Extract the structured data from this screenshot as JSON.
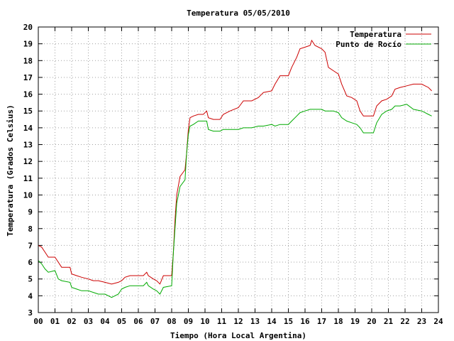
{
  "chart_data": {
    "type": "line",
    "title": "Temperatura 05/05/2010",
    "xlabel": "Tiempo (Hora Local Argentina)",
    "ylabel": "Temperatura (Grados Celsius)",
    "xlim": [
      0,
      24
    ],
    "ylim": [
      3,
      20
    ],
    "x_ticks": [
      "00",
      "01",
      "02",
      "03",
      "04",
      "05",
      "06",
      "07",
      "08",
      "09",
      "10",
      "11",
      "12",
      "13",
      "14",
      "15",
      "16",
      "17",
      "18",
      "19",
      "20",
      "21",
      "22",
      "23",
      "24"
    ],
    "y_ticks": [
      3,
      4,
      5,
      6,
      7,
      8,
      9,
      10,
      11,
      12,
      13,
      14,
      15,
      16,
      17,
      18,
      19,
      20
    ],
    "grid": true,
    "legend_position": "top-right",
    "series": [
      {
        "name": "Temperatura",
        "color": "#cc0000",
        "points": [
          [
            0.0,
            7.0
          ],
          [
            0.2,
            6.9
          ],
          [
            0.4,
            6.6
          ],
          [
            0.6,
            6.3
          ],
          [
            1.0,
            6.3
          ],
          [
            1.2,
            6.0
          ],
          [
            1.4,
            5.7
          ],
          [
            1.9,
            5.7
          ],
          [
            2.0,
            5.3
          ],
          [
            2.3,
            5.2
          ],
          [
            2.6,
            5.1
          ],
          [
            3.0,
            5.0
          ],
          [
            3.3,
            4.9
          ],
          [
            3.6,
            4.9
          ],
          [
            4.0,
            4.8
          ],
          [
            4.4,
            4.7
          ],
          [
            4.8,
            4.8
          ],
          [
            5.0,
            4.9
          ],
          [
            5.2,
            5.1
          ],
          [
            5.5,
            5.2
          ],
          [
            6.0,
            5.2
          ],
          [
            6.3,
            5.2
          ],
          [
            6.5,
            5.4
          ],
          [
            6.6,
            5.2
          ],
          [
            6.9,
            5.0
          ],
          [
            7.1,
            4.9
          ],
          [
            7.3,
            4.7
          ],
          [
            7.5,
            5.2
          ],
          [
            8.0,
            5.2
          ],
          [
            8.1,
            6.5
          ],
          [
            8.2,
            8.5
          ],
          [
            8.3,
            10.0
          ],
          [
            8.5,
            11.1
          ],
          [
            8.8,
            11.5
          ],
          [
            8.9,
            12.5
          ],
          [
            9.0,
            13.9
          ],
          [
            9.1,
            14.6
          ],
          [
            9.3,
            14.7
          ],
          [
            9.6,
            14.8
          ],
          [
            9.9,
            14.8
          ],
          [
            10.1,
            15.0
          ],
          [
            10.2,
            14.6
          ],
          [
            10.5,
            14.5
          ],
          [
            10.9,
            14.5
          ],
          [
            11.1,
            14.8
          ],
          [
            11.5,
            15.0
          ],
          [
            12.0,
            15.2
          ],
          [
            12.3,
            15.6
          ],
          [
            12.8,
            15.6
          ],
          [
            13.2,
            15.8
          ],
          [
            13.5,
            16.1
          ],
          [
            14.0,
            16.2
          ],
          [
            14.2,
            16.6
          ],
          [
            14.5,
            17.1
          ],
          [
            15.0,
            17.1
          ],
          [
            15.2,
            17.6
          ],
          [
            15.5,
            18.2
          ],
          [
            15.7,
            18.7
          ],
          [
            16.0,
            18.8
          ],
          [
            16.3,
            18.9
          ],
          [
            16.4,
            19.2
          ],
          [
            16.6,
            18.9
          ],
          [
            17.0,
            18.7
          ],
          [
            17.2,
            18.5
          ],
          [
            17.4,
            17.6
          ],
          [
            17.7,
            17.4
          ],
          [
            18.0,
            17.2
          ],
          [
            18.2,
            16.6
          ],
          [
            18.5,
            15.9
          ],
          [
            18.8,
            15.8
          ],
          [
            19.1,
            15.6
          ],
          [
            19.3,
            15.0
          ],
          [
            19.5,
            14.7
          ],
          [
            19.8,
            14.7
          ],
          [
            20.1,
            14.7
          ],
          [
            20.3,
            15.3
          ],
          [
            20.6,
            15.6
          ],
          [
            20.9,
            15.7
          ],
          [
            21.2,
            15.9
          ],
          [
            21.4,
            16.3
          ],
          [
            21.7,
            16.4
          ],
          [
            22.1,
            16.5
          ],
          [
            22.5,
            16.6
          ],
          [
            23.0,
            16.6
          ],
          [
            23.2,
            16.5
          ],
          [
            23.4,
            16.4
          ],
          [
            23.6,
            16.2
          ]
        ]
      },
      {
        "name": "Punto de Rocío",
        "color": "#00aa00",
        "points": [
          [
            0.0,
            6.1
          ],
          [
            0.2,
            5.9
          ],
          [
            0.4,
            5.6
          ],
          [
            0.6,
            5.4
          ],
          [
            1.0,
            5.5
          ],
          [
            1.2,
            5.0
          ],
          [
            1.4,
            4.9
          ],
          [
            1.9,
            4.8
          ],
          [
            2.0,
            4.5
          ],
          [
            2.3,
            4.4
          ],
          [
            2.6,
            4.3
          ],
          [
            3.0,
            4.3
          ],
          [
            3.3,
            4.2
          ],
          [
            3.6,
            4.1
          ],
          [
            4.0,
            4.1
          ],
          [
            4.4,
            3.9
          ],
          [
            4.8,
            4.1
          ],
          [
            5.0,
            4.4
          ],
          [
            5.2,
            4.5
          ],
          [
            5.5,
            4.6
          ],
          [
            6.0,
            4.6
          ],
          [
            6.3,
            4.6
          ],
          [
            6.5,
            4.8
          ],
          [
            6.6,
            4.6
          ],
          [
            6.9,
            4.4
          ],
          [
            7.1,
            4.3
          ],
          [
            7.3,
            4.1
          ],
          [
            7.5,
            4.5
          ],
          [
            8.0,
            4.6
          ],
          [
            8.1,
            6.5
          ],
          [
            8.2,
            8.0
          ],
          [
            8.3,
            9.5
          ],
          [
            8.5,
            10.5
          ],
          [
            8.8,
            10.9
          ],
          [
            8.9,
            12.5
          ],
          [
            9.0,
            13.6
          ],
          [
            9.1,
            14.1
          ],
          [
            9.3,
            14.2
          ],
          [
            9.6,
            14.4
          ],
          [
            9.9,
            14.4
          ],
          [
            10.1,
            14.4
          ],
          [
            10.2,
            13.9
          ],
          [
            10.5,
            13.8
          ],
          [
            10.9,
            13.8
          ],
          [
            11.1,
            13.9
          ],
          [
            11.5,
            13.9
          ],
          [
            12.0,
            13.9
          ],
          [
            12.3,
            14.0
          ],
          [
            12.8,
            14.0
          ],
          [
            13.2,
            14.1
          ],
          [
            13.5,
            14.1
          ],
          [
            14.0,
            14.2
          ],
          [
            14.2,
            14.1
          ],
          [
            14.5,
            14.2
          ],
          [
            15.0,
            14.2
          ],
          [
            15.2,
            14.4
          ],
          [
            15.5,
            14.7
          ],
          [
            15.7,
            14.9
          ],
          [
            16.0,
            15.0
          ],
          [
            16.3,
            15.1
          ],
          [
            16.4,
            15.1
          ],
          [
            16.6,
            15.1
          ],
          [
            17.0,
            15.1
          ],
          [
            17.2,
            15.0
          ],
          [
            17.4,
            15.0
          ],
          [
            17.7,
            15.0
          ],
          [
            18.0,
            14.9
          ],
          [
            18.2,
            14.6
          ],
          [
            18.5,
            14.4
          ],
          [
            18.8,
            14.3
          ],
          [
            19.1,
            14.2
          ],
          [
            19.3,
            14.0
          ],
          [
            19.5,
            13.7
          ],
          [
            19.8,
            13.7
          ],
          [
            20.1,
            13.7
          ],
          [
            20.3,
            14.3
          ],
          [
            20.6,
            14.8
          ],
          [
            20.9,
            15.0
          ],
          [
            21.2,
            15.1
          ],
          [
            21.4,
            15.3
          ],
          [
            21.7,
            15.3
          ],
          [
            22.1,
            15.4
          ],
          [
            22.5,
            15.1
          ],
          [
            23.0,
            15.0
          ],
          [
            23.2,
            14.9
          ],
          [
            23.4,
            14.8
          ],
          [
            23.6,
            14.7
          ]
        ]
      }
    ]
  }
}
